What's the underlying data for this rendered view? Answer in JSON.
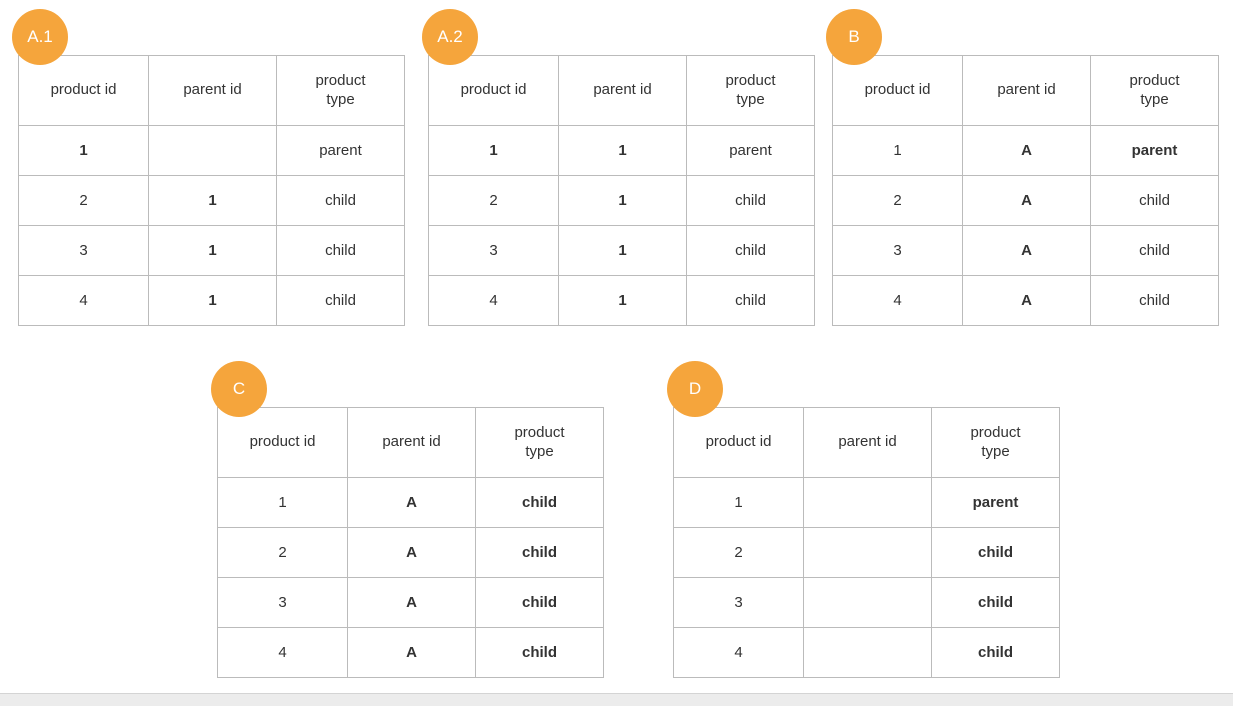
{
  "diagram": {
    "badge_color": "#F5A53C",
    "badge_text_color": "#FFFFFF",
    "border_color": "#BBBBBB",
    "text_color": "#333333",
    "columns": [
      "product id",
      "parent id",
      "product type"
    ],
    "tables": [
      {
        "label": "A.1",
        "rows": [
          [
            {
              "v": "1",
              "b": true
            },
            {
              "v": "",
              "b": false
            },
            {
              "v": "parent",
              "b": false
            }
          ],
          [
            {
              "v": "2",
              "b": false
            },
            {
              "v": "1",
              "b": true
            },
            {
              "v": "child",
              "b": false
            }
          ],
          [
            {
              "v": "3",
              "b": false
            },
            {
              "v": "1",
              "b": true
            },
            {
              "v": "child",
              "b": false
            }
          ],
          [
            {
              "v": "4",
              "b": false
            },
            {
              "v": "1",
              "b": true
            },
            {
              "v": "child",
              "b": false
            }
          ]
        ]
      },
      {
        "label": "A.2",
        "rows": [
          [
            {
              "v": "1",
              "b": true
            },
            {
              "v": "1",
              "b": true
            },
            {
              "v": "parent",
              "b": false
            }
          ],
          [
            {
              "v": "2",
              "b": false
            },
            {
              "v": "1",
              "b": true
            },
            {
              "v": "child",
              "b": false
            }
          ],
          [
            {
              "v": "3",
              "b": false
            },
            {
              "v": "1",
              "b": true
            },
            {
              "v": "child",
              "b": false
            }
          ],
          [
            {
              "v": "4",
              "b": false
            },
            {
              "v": "1",
              "b": true
            },
            {
              "v": "child",
              "b": false
            }
          ]
        ]
      },
      {
        "label": "B",
        "rows": [
          [
            {
              "v": "1",
              "b": false
            },
            {
              "v": "A",
              "b": true
            },
            {
              "v": "parent",
              "b": true
            }
          ],
          [
            {
              "v": "2",
              "b": false
            },
            {
              "v": "A",
              "b": true
            },
            {
              "v": "child",
              "b": false
            }
          ],
          [
            {
              "v": "3",
              "b": false
            },
            {
              "v": "A",
              "b": true
            },
            {
              "v": "child",
              "b": false
            }
          ],
          [
            {
              "v": "4",
              "b": false
            },
            {
              "v": "A",
              "b": true
            },
            {
              "v": "child",
              "b": false
            }
          ]
        ]
      },
      {
        "label": "C",
        "rows": [
          [
            {
              "v": "1",
              "b": false
            },
            {
              "v": "A",
              "b": true
            },
            {
              "v": "child",
              "b": true
            }
          ],
          [
            {
              "v": "2",
              "b": false
            },
            {
              "v": "A",
              "b": true
            },
            {
              "v": "child",
              "b": true
            }
          ],
          [
            {
              "v": "3",
              "b": false
            },
            {
              "v": "A",
              "b": true
            },
            {
              "v": "child",
              "b": true
            }
          ],
          [
            {
              "v": "4",
              "b": false
            },
            {
              "v": "A",
              "b": true
            },
            {
              "v": "child",
              "b": true
            }
          ]
        ]
      },
      {
        "label": "D",
        "rows": [
          [
            {
              "v": "1",
              "b": false
            },
            {
              "v": "",
              "b": false
            },
            {
              "v": "parent",
              "b": true
            }
          ],
          [
            {
              "v": "2",
              "b": false
            },
            {
              "v": "",
              "b": false
            },
            {
              "v": "child",
              "b": true
            }
          ],
          [
            {
              "v": "3",
              "b": false
            },
            {
              "v": "",
              "b": false
            },
            {
              "v": "child",
              "b": true
            }
          ],
          [
            {
              "v": "4",
              "b": false
            },
            {
              "v": "",
              "b": false
            },
            {
              "v": "child",
              "b": true
            }
          ]
        ]
      }
    ]
  }
}
